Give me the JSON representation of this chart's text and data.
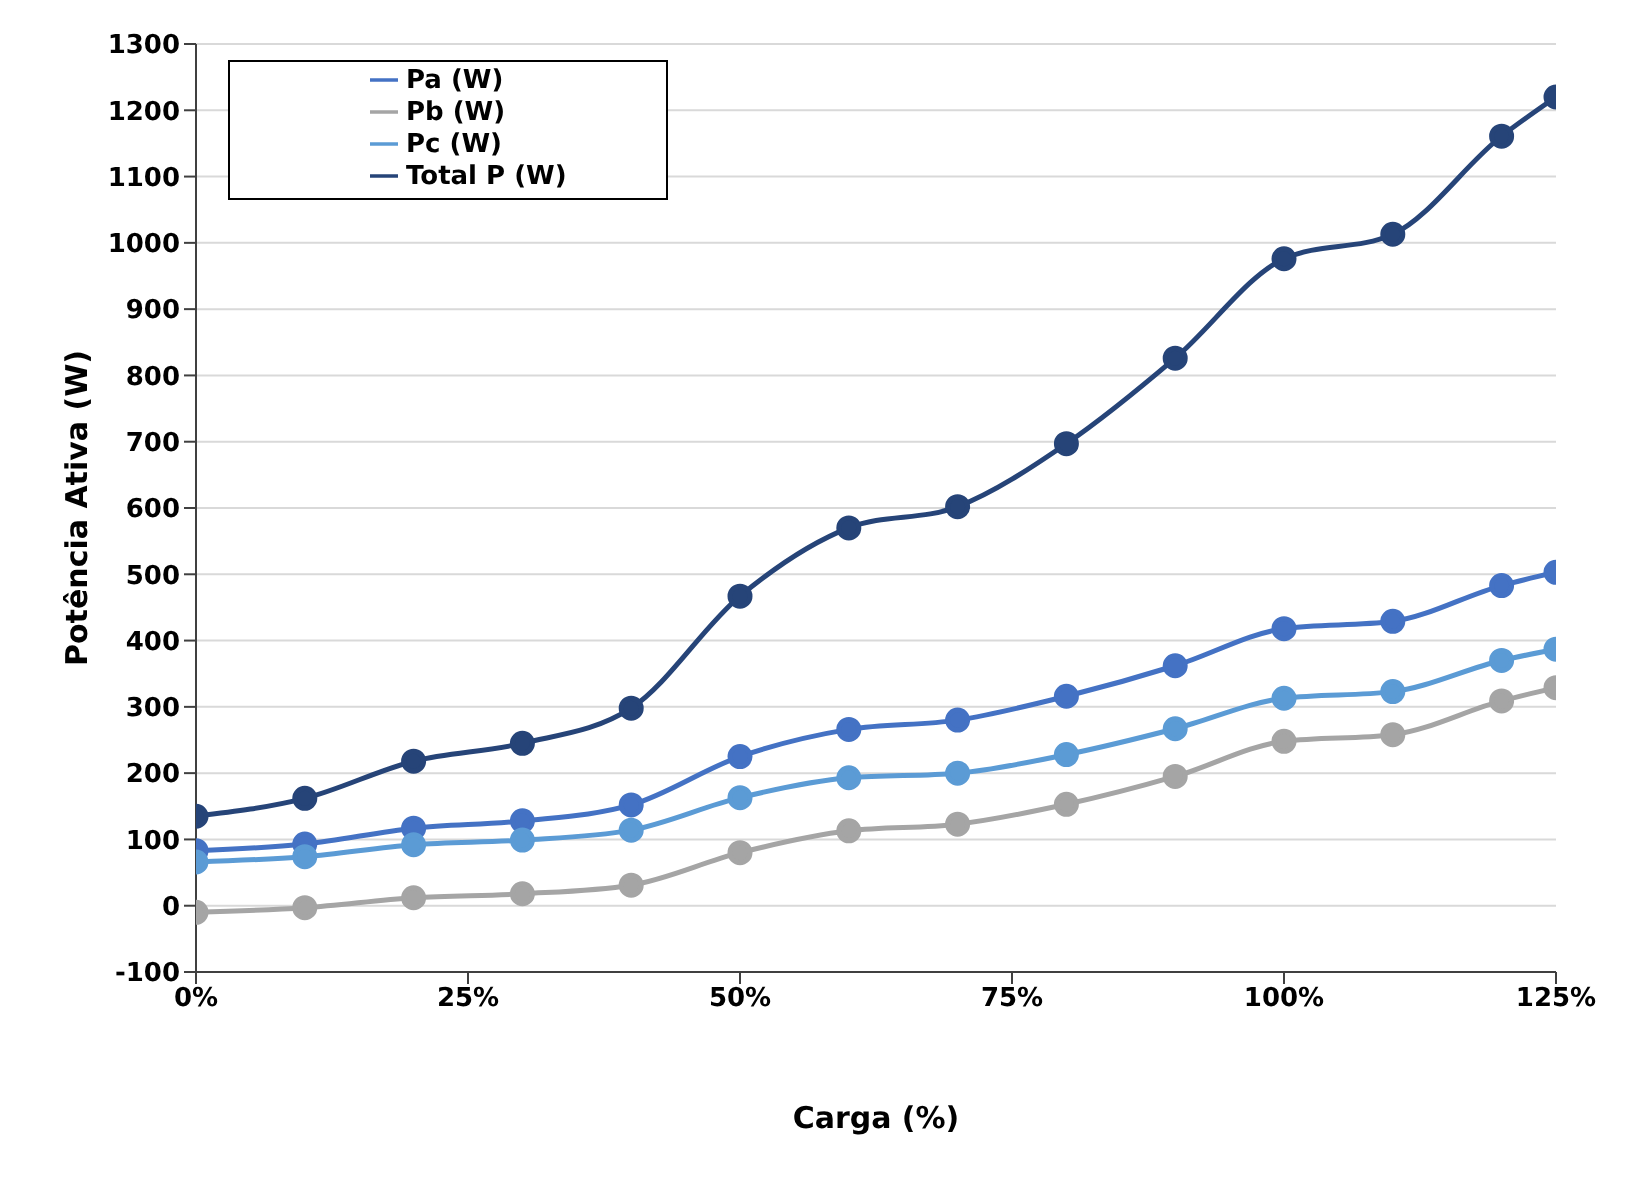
{
  "chart_data": {
    "type": "line",
    "xlabel": "Carga (%)",
    "ylabel": "Potência Ativa (W)",
    "x": [
      0,
      10,
      20,
      30,
      40,
      50,
      60,
      70,
      80,
      90,
      100,
      110,
      120,
      125
    ],
    "series": [
      {
        "name": "Pa (W)",
        "color": "#4472c4",
        "values": [
          83,
          93,
          117,
          128,
          152,
          225,
          266,
          280,
          316,
          362,
          418,
          429,
          483,
          503
        ]
      },
      {
        "name": "Pb (W)",
        "color": "#a5a5a5",
        "values": [
          -10,
          -3,
          12,
          18,
          31,
          80,
          113,
          123,
          153,
          195,
          248,
          258,
          309,
          329
        ]
      },
      {
        "name": "Pc (W)",
        "color": "#5b9bd5",
        "values": [
          66,
          74,
          92,
          99,
          114,
          163,
          193,
          200,
          228,
          267,
          313,
          323,
          370,
          387
        ]
      },
      {
        "name": "Total P (W)",
        "color": "#264478",
        "values": [
          135,
          162,
          218,
          245,
          298,
          467,
          570,
          602,
          697,
          826,
          976,
          1013,
          1161,
          1220
        ]
      }
    ],
    "xlim": [
      0,
      125
    ],
    "xticks": [
      {
        "value": 0,
        "label": "0%"
      },
      {
        "value": 25,
        "label": "25%"
      },
      {
        "value": 50,
        "label": "50%"
      },
      {
        "value": 75,
        "label": "75%"
      },
      {
        "value": 100,
        "label": "100%"
      },
      {
        "value": 125,
        "label": "125%"
      }
    ],
    "ylim": [
      -100,
      1300
    ],
    "yticks": [
      -100,
      0,
      100,
      200,
      300,
      400,
      500,
      600,
      700,
      800,
      900,
      1000,
      1100,
      1200,
      1300
    ],
    "grid": "y",
    "legend": "top left",
    "marker": "circle",
    "line_style": "solid"
  }
}
